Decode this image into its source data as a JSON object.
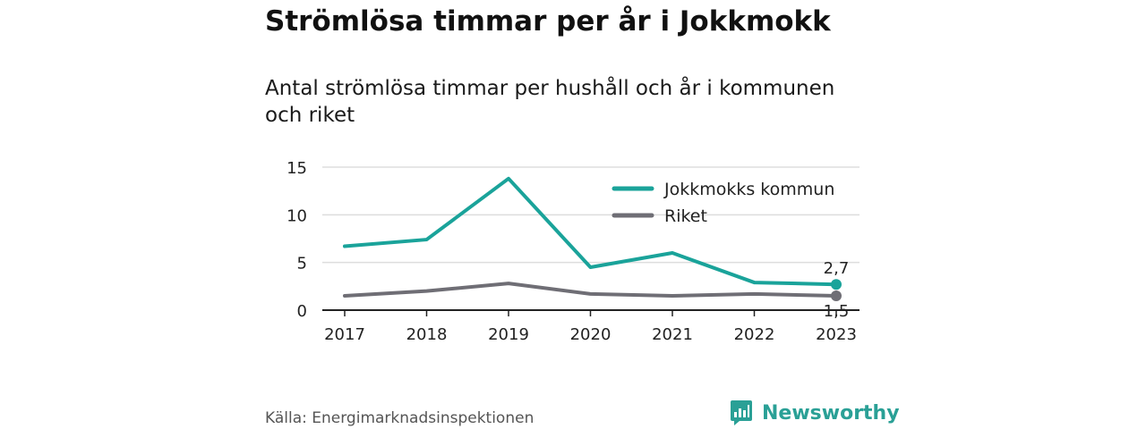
{
  "header": {
    "title": "Strömlösa timmar per år i Jokkmokk",
    "subtitle": "Antal strömlösa timmar per hushåll och år i kommunen och riket"
  },
  "footer": {
    "source": "Källa: Energimarknadsinspektionen",
    "brand": "Newsworthy"
  },
  "colors": {
    "jokkmokk": "#1aa39a",
    "riket": "#6f6e75",
    "grid": "#dddddd",
    "axis": "#222222",
    "brand": "#2aa096"
  },
  "chart_data": {
    "type": "line",
    "title": "Strömlösa timmar per år i Jokkmokk",
    "subtitle": "Antal strömlösa timmar per hushåll och år i kommunen och riket",
    "xlabel": "",
    "ylabel": "",
    "categories": [
      "2017",
      "2018",
      "2019",
      "2020",
      "2021",
      "2022",
      "2023"
    ],
    "yticks": [
      "0",
      "5",
      "10",
      "15"
    ],
    "ylim": [
      0,
      15
    ],
    "grid": true,
    "legend_position": "top-right",
    "series": [
      {
        "name": "Jokkmokks kommun",
        "values": [
          6.7,
          7.4,
          13.8,
          4.5,
          6.0,
          2.9,
          2.7
        ],
        "end_label": "2,7"
      },
      {
        "name": "Riket",
        "values": [
          1.5,
          2.0,
          2.8,
          1.7,
          1.5,
          1.7,
          1.5
        ],
        "end_label": "1,5"
      }
    ]
  }
}
